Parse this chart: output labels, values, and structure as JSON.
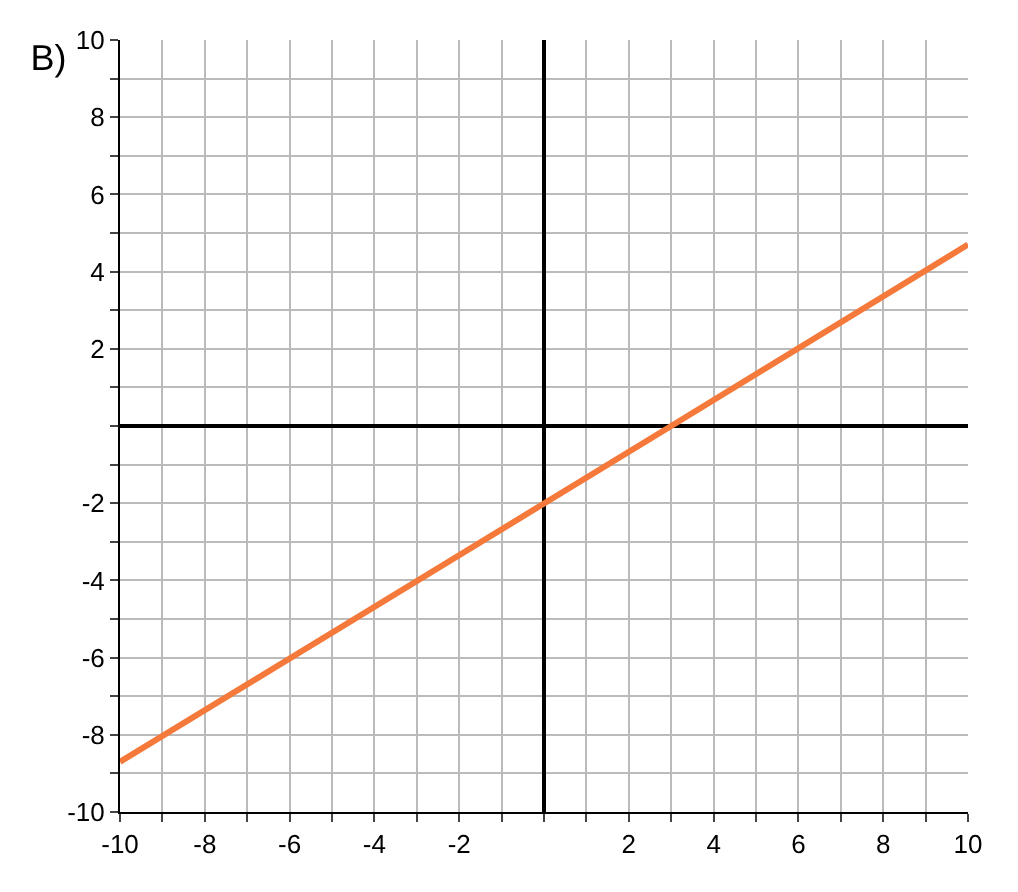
{
  "chart_data": {
    "type": "line",
    "title": "B)",
    "x": [
      -10,
      3,
      10
    ],
    "series": [
      {
        "color": "#f5793a",
        "values": [
          -8.7,
          0,
          4.7
        ]
      }
    ],
    "xlim": [
      -10,
      10
    ],
    "ylim": [
      -10,
      10
    ],
    "xticks": [
      -10,
      {
        "value": -9,
        "label": null
      },
      -8,
      {
        "value": -7,
        "label": null
      },
      -6,
      {
        "value": -5,
        "label": null
      },
      -4,
      {
        "value": -3,
        "label": null
      },
      -2,
      {
        "value": -1,
        "label": null
      },
      {
        "value": 0,
        "label": null
      },
      {
        "value": 1,
        "label": null
      },
      2,
      {
        "value": 3,
        "label": null
      },
      4,
      {
        "value": 5,
        "label": null
      },
      6,
      {
        "value": 7,
        "label": null
      },
      8,
      {
        "value": 9,
        "label": null
      },
      10
    ],
    "yticks": [
      -10,
      {
        "value": -9,
        "label": null
      },
      -8,
      {
        "value": -7,
        "label": null
      },
      -6,
      {
        "value": -5,
        "label": null
      },
      -4,
      {
        "value": -3,
        "label": null
      },
      -2,
      {
        "value": -1,
        "label": null
      },
      {
        "value": 0,
        "label": null
      },
      {
        "value": 1,
        "label": null
      },
      2,
      {
        "value": 3,
        "label": null
      },
      4,
      {
        "value": 5,
        "label": null
      },
      6,
      {
        "value": 7,
        "label": null
      },
      8,
      {
        "value": 9,
        "label": null
      },
      10
    ],
    "grid": true,
    "marker": "none",
    "line_style": "solid"
  }
}
